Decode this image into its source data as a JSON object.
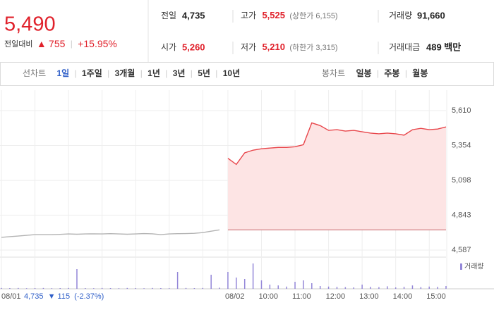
{
  "header": {
    "price": "5,490",
    "change_label": "전일대비",
    "change": "755",
    "change_rate": "+15.95%"
  },
  "info": [
    {
      "label": "전일",
      "value": "4,735"
    },
    {
      "label": "고가",
      "value": "5,525",
      "note": "(상한가 6,155)"
    },
    {
      "label": "거래량",
      "value": "91,660"
    },
    {
      "label": "시가",
      "value": "5,260"
    },
    {
      "label": "저가",
      "value": "5,210",
      "note": "(하한가 3,315)"
    },
    {
      "label": "거래대금",
      "value": "489 백만"
    }
  ],
  "tabs": {
    "line_label": "선차트",
    "line_periods": [
      "1일",
      "1주일",
      "3개월",
      "1년",
      "3년",
      "5년",
      "10년"
    ],
    "candle_label": "봉차트",
    "candle_periods": [
      "일봉",
      "주봉",
      "월봉"
    ]
  },
  "footer": {
    "prev_close": "4,735",
    "change": "115",
    "change_rate": "(-2.37%)"
  },
  "chart_data": {
    "type": "line",
    "categories": [
      "08/01",
      null,
      null,
      null,
      null,
      null,
      null,
      null,
      null,
      null,
      null,
      null,
      null,
      null,
      null,
      null,
      null,
      null,
      null,
      null,
      null,
      null,
      null,
      null,
      null,
      null,
      null,
      "08/02",
      null,
      null,
      null,
      "10:00",
      null,
      null,
      null,
      "11:00",
      null,
      null,
      null,
      "12:00",
      null,
      null,
      null,
      "13:00",
      null,
      null,
      null,
      "14:00",
      null,
      null,
      null,
      "15:00",
      null,
      null
    ],
    "series": [
      {
        "color": "#b3b3b3",
        "values": [
          4680,
          4685,
          4690,
          4695,
          4700,
          4700,
          4700,
          4702,
          4705,
          4703,
          4705,
          4706,
          4705,
          4707,
          4705,
          4703,
          4705,
          4708,
          4706,
          4700,
          4705,
          4707,
          4708,
          4710,
          4715,
          4725,
          4735,
          null,
          null,
          null,
          null,
          null,
          null,
          null,
          null,
          null,
          null,
          null,
          null,
          null,
          null,
          null,
          null,
          null,
          null,
          null,
          null,
          null,
          null,
          null,
          null,
          null,
          null,
          null
        ]
      },
      {
        "color": "#e8464b",
        "fill": "#fde4e4",
        "values": [
          null,
          null,
          null,
          null,
          null,
          null,
          null,
          null,
          null,
          null,
          null,
          null,
          null,
          null,
          null,
          null,
          null,
          null,
          null,
          null,
          null,
          null,
          null,
          null,
          null,
          null,
          null,
          5260,
          5215,
          5300,
          5320,
          5330,
          5335,
          5340,
          5340,
          5345,
          5360,
          5520,
          5500,
          5465,
          5470,
          5460,
          5465,
          5455,
          5445,
          5440,
          5445,
          5440,
          5430,
          5470,
          5480,
          5470,
          5475,
          5490
        ]
      }
    ],
    "baseline": 4735,
    "ylim": [
      4535,
      5760
    ],
    "yticks": [
      {
        "value": 5610,
        "label": "5,610"
      },
      {
        "value": 5354,
        "label": "5,354"
      },
      {
        "value": 5098,
        "label": "5,098"
      },
      {
        "value": 4843,
        "label": "4,843"
      },
      {
        "value": 4587,
        "label": "4,587"
      }
    ],
    "grid": true,
    "volume": {
      "name": "거래량",
      "color": "#9487d8",
      "values": [
        300,
        250,
        300,
        200,
        250,
        300,
        200,
        250,
        300,
        7000,
        250,
        200,
        300,
        250,
        200,
        300,
        250,
        200,
        300,
        250,
        200,
        6000,
        300,
        250,
        300,
        5000,
        400,
        6000,
        4000,
        3500,
        9000,
        3000,
        1500,
        1200,
        800,
        2500,
        3000,
        2000,
        1000,
        800,
        700,
        600,
        500,
        1500,
        700,
        600,
        900,
        500,
        700,
        1200,
        600,
        800,
        700,
        1000
      ]
    }
  }
}
